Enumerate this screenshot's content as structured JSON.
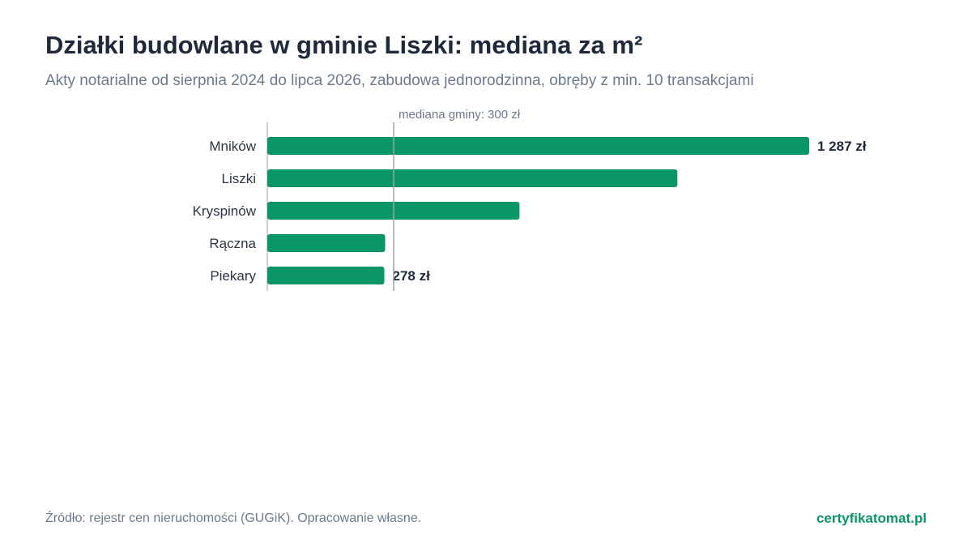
{
  "header": {
    "title": "Działki budowlane w gminie Liszki: mediana za m²",
    "subtitle": "Akty notarialne od sierpnia 2024 do lipca 2026, zabudowa jednorodzinna, obręby z min. 10 transakcjami"
  },
  "chart_data": {
    "type": "bar",
    "orientation": "horizontal",
    "title": "Działki budowlane w gminie Liszki: mediana za m²",
    "subtitle": "Akty notarialne od sierpnia 2024 do lipca 2026, zabudowa jednorodzinna, obręby z min. 10 transakcjami",
    "categories": [
      "Mników",
      "Liszki",
      "Kryspinów",
      "Rączna",
      "Piekary"
    ],
    "values": [
      1287,
      974,
      599,
      280,
      278
    ],
    "value_labels": [
      "1 287 zł",
      "",
      "",
      "",
      "278 zł"
    ],
    "xlim": [
      0,
      1287
    ],
    "reference_line": {
      "value": 300,
      "label": "mediana gminy: 300 zł"
    },
    "grid": false,
    "colors": {
      "bar": "#0b9668",
      "reference_line": "#9aa3ad",
      "axis": "#9aa3ad"
    }
  },
  "footer": {
    "source": "Źródło: rejestr cen nieruchomości (GUGiK). Opracowanie własne.",
    "brand": "certyfikatomat.pl"
  }
}
